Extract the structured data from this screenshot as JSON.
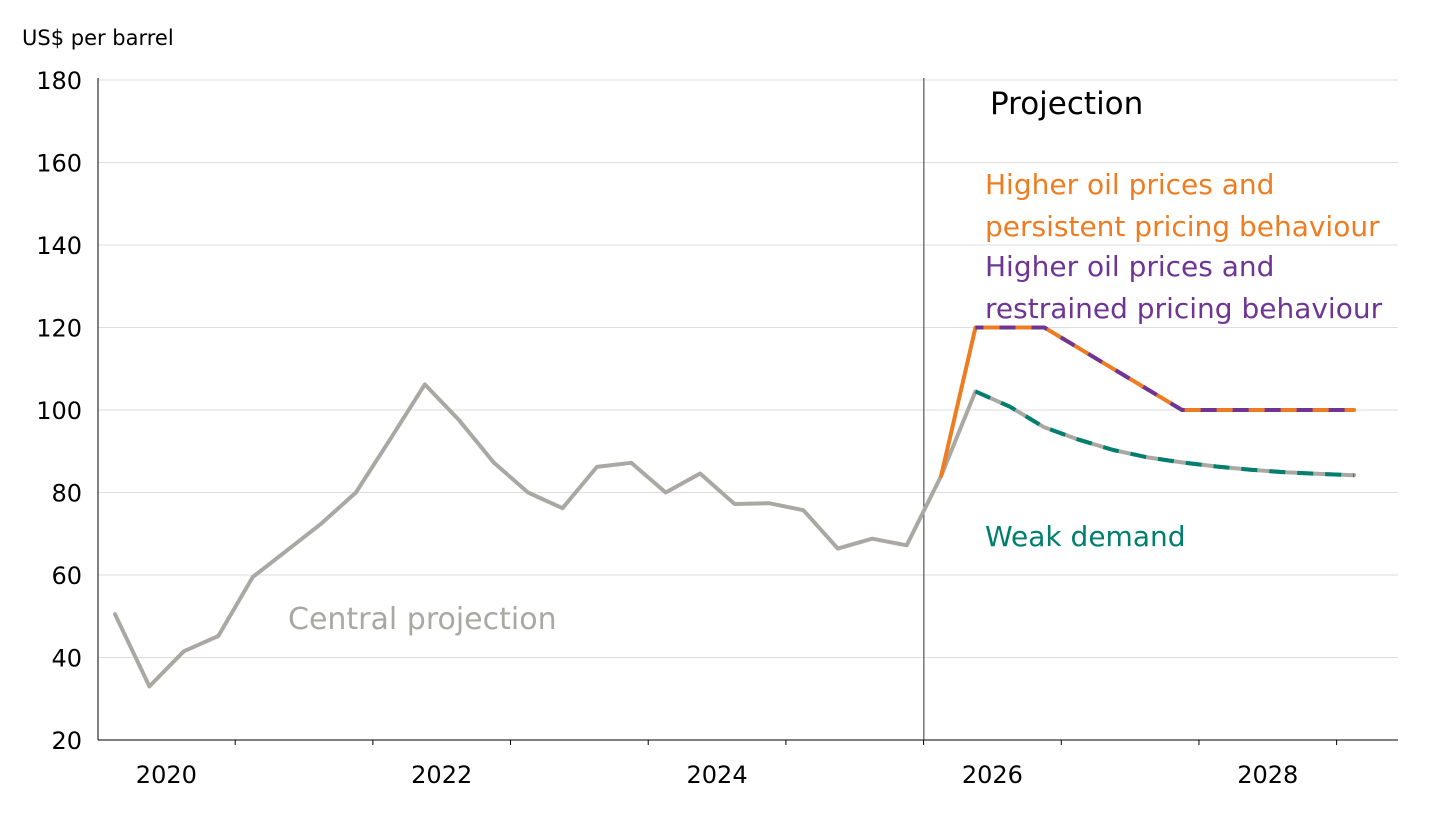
{
  "chart_data": {
    "type": "line",
    "ylabel": "US$ per barrel",
    "ylim": [
      20,
      180
    ],
    "yticks": [
      20,
      40,
      60,
      80,
      100,
      120,
      140,
      160,
      180
    ],
    "xticks": [
      "2020",
      "2022",
      "2024",
      "2026",
      "2028"
    ],
    "grid": "horizontal",
    "projection_label": "Projection",
    "projection_start": "2025 Q4",
    "colors": {
      "central": "#aaa8a3",
      "higher_persistent": "#ee7d22",
      "higher_restrained": "#6e3594",
      "weak": "#007e6e",
      "axis": "#000000",
      "grid": "#dedede"
    },
    "series": [
      {
        "name": "Central projection",
        "points": [
          [
            "2020 Q1",
            50.5
          ],
          [
            "2020 Q2",
            33
          ],
          [
            "2020 Q3",
            41.5
          ],
          [
            "2020 Q4",
            45.2
          ],
          [
            "2021 Q1",
            59.5
          ],
          [
            "2021 Q2",
            66
          ],
          [
            "2021 Q3",
            72.5
          ],
          [
            "2021 Q4",
            80
          ],
          [
            "2022 Q1",
            93
          ],
          [
            "2022 Q2",
            106.2
          ],
          [
            "2022 Q3",
            97.5
          ],
          [
            "2022 Q4",
            87.3
          ],
          [
            "2023 Q1",
            80
          ],
          [
            "2023 Q2",
            76.2
          ],
          [
            "2023 Q3",
            86.2
          ],
          [
            "2023 Q4",
            87.2
          ],
          [
            "2024 Q1",
            80
          ],
          [
            "2024 Q2",
            84.6
          ],
          [
            "2024 Q3",
            77.2
          ],
          [
            "2024 Q4",
            77.4
          ],
          [
            "2025 Q1",
            75.7
          ],
          [
            "2025 Q2",
            66.4
          ],
          [
            "2025 Q3",
            68.8
          ],
          [
            "2025 Q4",
            67.2
          ],
          [
            "2026 Q1",
            84
          ],
          [
            "2026 Q2",
            104.5
          ],
          [
            "2026 Q3",
            100.8
          ],
          [
            "2026 Q4",
            95.8
          ],
          [
            "2027 Q1",
            92.8
          ],
          [
            "2027 Q2",
            90.3
          ],
          [
            "2027 Q3",
            88.5
          ],
          [
            "2027 Q4",
            87.3
          ],
          [
            "2028 Q1",
            86.3
          ],
          [
            "2028 Q2",
            85.5
          ],
          [
            "2028 Q3",
            84.9
          ],
          [
            "2028 Q4",
            84.5
          ],
          [
            "2029 Q1",
            84.2
          ]
        ]
      },
      {
        "name": "Higher oil prices and persistent pricing behaviour",
        "points": [
          [
            "2026 Q1",
            84
          ],
          [
            "2026 Q2",
            120
          ],
          [
            "2026 Q3",
            120
          ],
          [
            "2026 Q4",
            120
          ],
          [
            "2027 Q1",
            115
          ],
          [
            "2027 Q2",
            110
          ],
          [
            "2027 Q3",
            105
          ],
          [
            "2027 Q4",
            100
          ],
          [
            "2028 Q1",
            100
          ],
          [
            "2028 Q2",
            100
          ],
          [
            "2028 Q3",
            100
          ],
          [
            "2028 Q4",
            100
          ],
          [
            "2029 Q1",
            100
          ]
        ]
      },
      {
        "name": "Higher oil prices and restrained pricing behaviour",
        "points": [
          [
            "2026 Q2",
            120
          ],
          [
            "2026 Q3",
            120
          ],
          [
            "2026 Q4",
            120
          ],
          [
            "2027 Q1",
            115
          ],
          [
            "2027 Q2",
            110
          ],
          [
            "2027 Q3",
            105
          ],
          [
            "2027 Q4",
            100
          ],
          [
            "2028 Q1",
            100
          ],
          [
            "2028 Q2",
            100
          ],
          [
            "2028 Q3",
            100
          ],
          [
            "2028 Q4",
            100
          ],
          [
            "2029 Q1",
            100
          ]
        ]
      },
      {
        "name": "Weak demand",
        "points": [
          [
            "2026 Q2",
            104.5
          ],
          [
            "2026 Q3",
            100.8
          ],
          [
            "2026 Q4",
            95.8
          ],
          [
            "2027 Q1",
            92.8
          ],
          [
            "2027 Q2",
            90.3
          ],
          [
            "2027 Q3",
            88.5
          ],
          [
            "2027 Q4",
            87.3
          ],
          [
            "2028 Q1",
            86.3
          ],
          [
            "2028 Q2",
            85.5
          ],
          [
            "2028 Q3",
            84.9
          ],
          [
            "2028 Q4",
            84.5
          ],
          [
            "2029 Q1",
            84.2
          ]
        ]
      }
    ]
  }
}
